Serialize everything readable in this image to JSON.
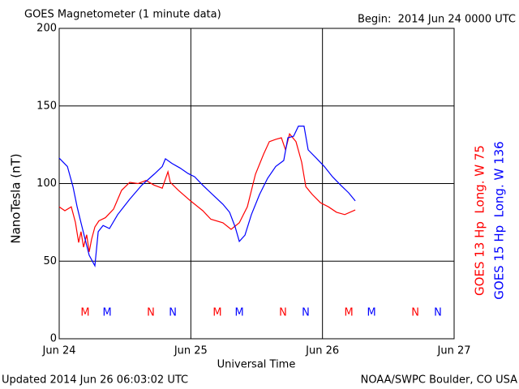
{
  "chart_data": {
    "type": "line",
    "title": "GOES Magnetometer (1 minute data)",
    "subtitle": "Begin:  2014 Jun 24 0000 UTC",
    "ylabel": "NanoTesla (nT)",
    "xlabel": "Universal Time",
    "footer_left": "Updated 2014 Jun 26 06:03:02 UTC",
    "footer_right": "NOAA/SWPC Boulder, CO USA",
    "xlim": [
      0,
      3
    ],
    "xticks": [
      {
        "value": 0,
        "label": "Jun 24"
      },
      {
        "value": 1,
        "label": "Jun 25"
      },
      {
        "value": 2,
        "label": "Jun 26"
      },
      {
        "value": 3,
        "label": "Jun 27"
      }
    ],
    "ylim": [
      0,
      200
    ],
    "yticks": [
      0,
      50,
      100,
      150,
      200
    ],
    "grid": true,
    "series": [
      {
        "name": "GOES 13 Hp  Long. W 75",
        "color": "#ff0000",
        "x": [
          0,
          0.043,
          0.092,
          0.123,
          0.148,
          0.166,
          0.185,
          0.209,
          0.228,
          0.246,
          0.271,
          0.302,
          0.351,
          0.413,
          0.474,
          0.536,
          0.598,
          0.659,
          0.721,
          0.783,
          0.826,
          0.844,
          0.906,
          0.998,
          1.091,
          1.152,
          1.244,
          1.306,
          1.368,
          1.429,
          1.491,
          1.553,
          1.596,
          1.645,
          1.688,
          1.719,
          1.75,
          1.799,
          1.842,
          1.873,
          1.922,
          1.984,
          2.045,
          2.107,
          2.169,
          2.249
        ],
        "values": [
          85,
          82.5,
          85,
          75,
          62,
          69,
          59,
          67,
          56,
          64,
          72,
          76,
          78,
          83.5,
          95.6,
          100.8,
          100,
          102,
          99,
          97,
          107.6,
          100.8,
          95.6,
          88.8,
          82.5,
          77,
          74.7,
          70.5,
          74.7,
          85,
          106,
          119,
          127,
          128.5,
          129.5,
          121.7,
          132,
          127,
          113.8,
          98,
          93,
          87.7,
          85,
          81.5,
          80,
          83
        ]
      },
      {
        "name": "GOES 15 Hp  Long. W 136",
        "color": "#0000ff",
        "x": [
          0,
          0.062,
          0.105,
          0.136,
          0.166,
          0.197,
          0.228,
          0.271,
          0.296,
          0.333,
          0.382,
          0.444,
          0.536,
          0.628,
          0.721,
          0.783,
          0.807,
          0.856,
          0.918,
          0.979,
          1.029,
          1.09,
          1.164,
          1.244,
          1.294,
          1.337,
          1.368,
          1.411,
          1.46,
          1.522,
          1.583,
          1.645,
          1.706,
          1.737,
          1.78,
          1.817,
          1.86,
          1.891,
          1.953,
          2.014,
          2.076,
          2.138,
          2.199,
          2.249
        ],
        "values": [
          116.4,
          111,
          98,
          85,
          74.7,
          64,
          53.8,
          47,
          69,
          73,
          71,
          80,
          90,
          99,
          106,
          111,
          116,
          113,
          110,
          106.5,
          104.4,
          99,
          93,
          86.7,
          81.5,
          72,
          62.7,
          66.8,
          80,
          93,
          103.4,
          111,
          114.9,
          129.5,
          130.5,
          137,
          137,
          121.7,
          116.4,
          111,
          104.4,
          99,
          94,
          88.8
        ]
      }
    ],
    "annotations": [
      {
        "text": "M",
        "x": 0.197,
        "series": 0
      },
      {
        "text": "M",
        "x": 0.364,
        "series": 1
      },
      {
        "text": "N",
        "x": 0.696,
        "series": 0
      },
      {
        "text": "N",
        "x": 0.863,
        "series": 1
      },
      {
        "text": "M",
        "x": 1.201,
        "series": 0
      },
      {
        "text": "M",
        "x": 1.368,
        "series": 1
      },
      {
        "text": "N",
        "x": 1.7,
        "series": 0
      },
      {
        "text": "N",
        "x": 1.873,
        "series": 1
      },
      {
        "text": "M",
        "x": 2.2,
        "series": 0
      },
      {
        "text": "M",
        "x": 2.372,
        "series": 1
      },
      {
        "text": "N",
        "x": 2.705,
        "series": 0
      },
      {
        "text": "N",
        "x": 2.877,
        "series": 1
      }
    ]
  }
}
